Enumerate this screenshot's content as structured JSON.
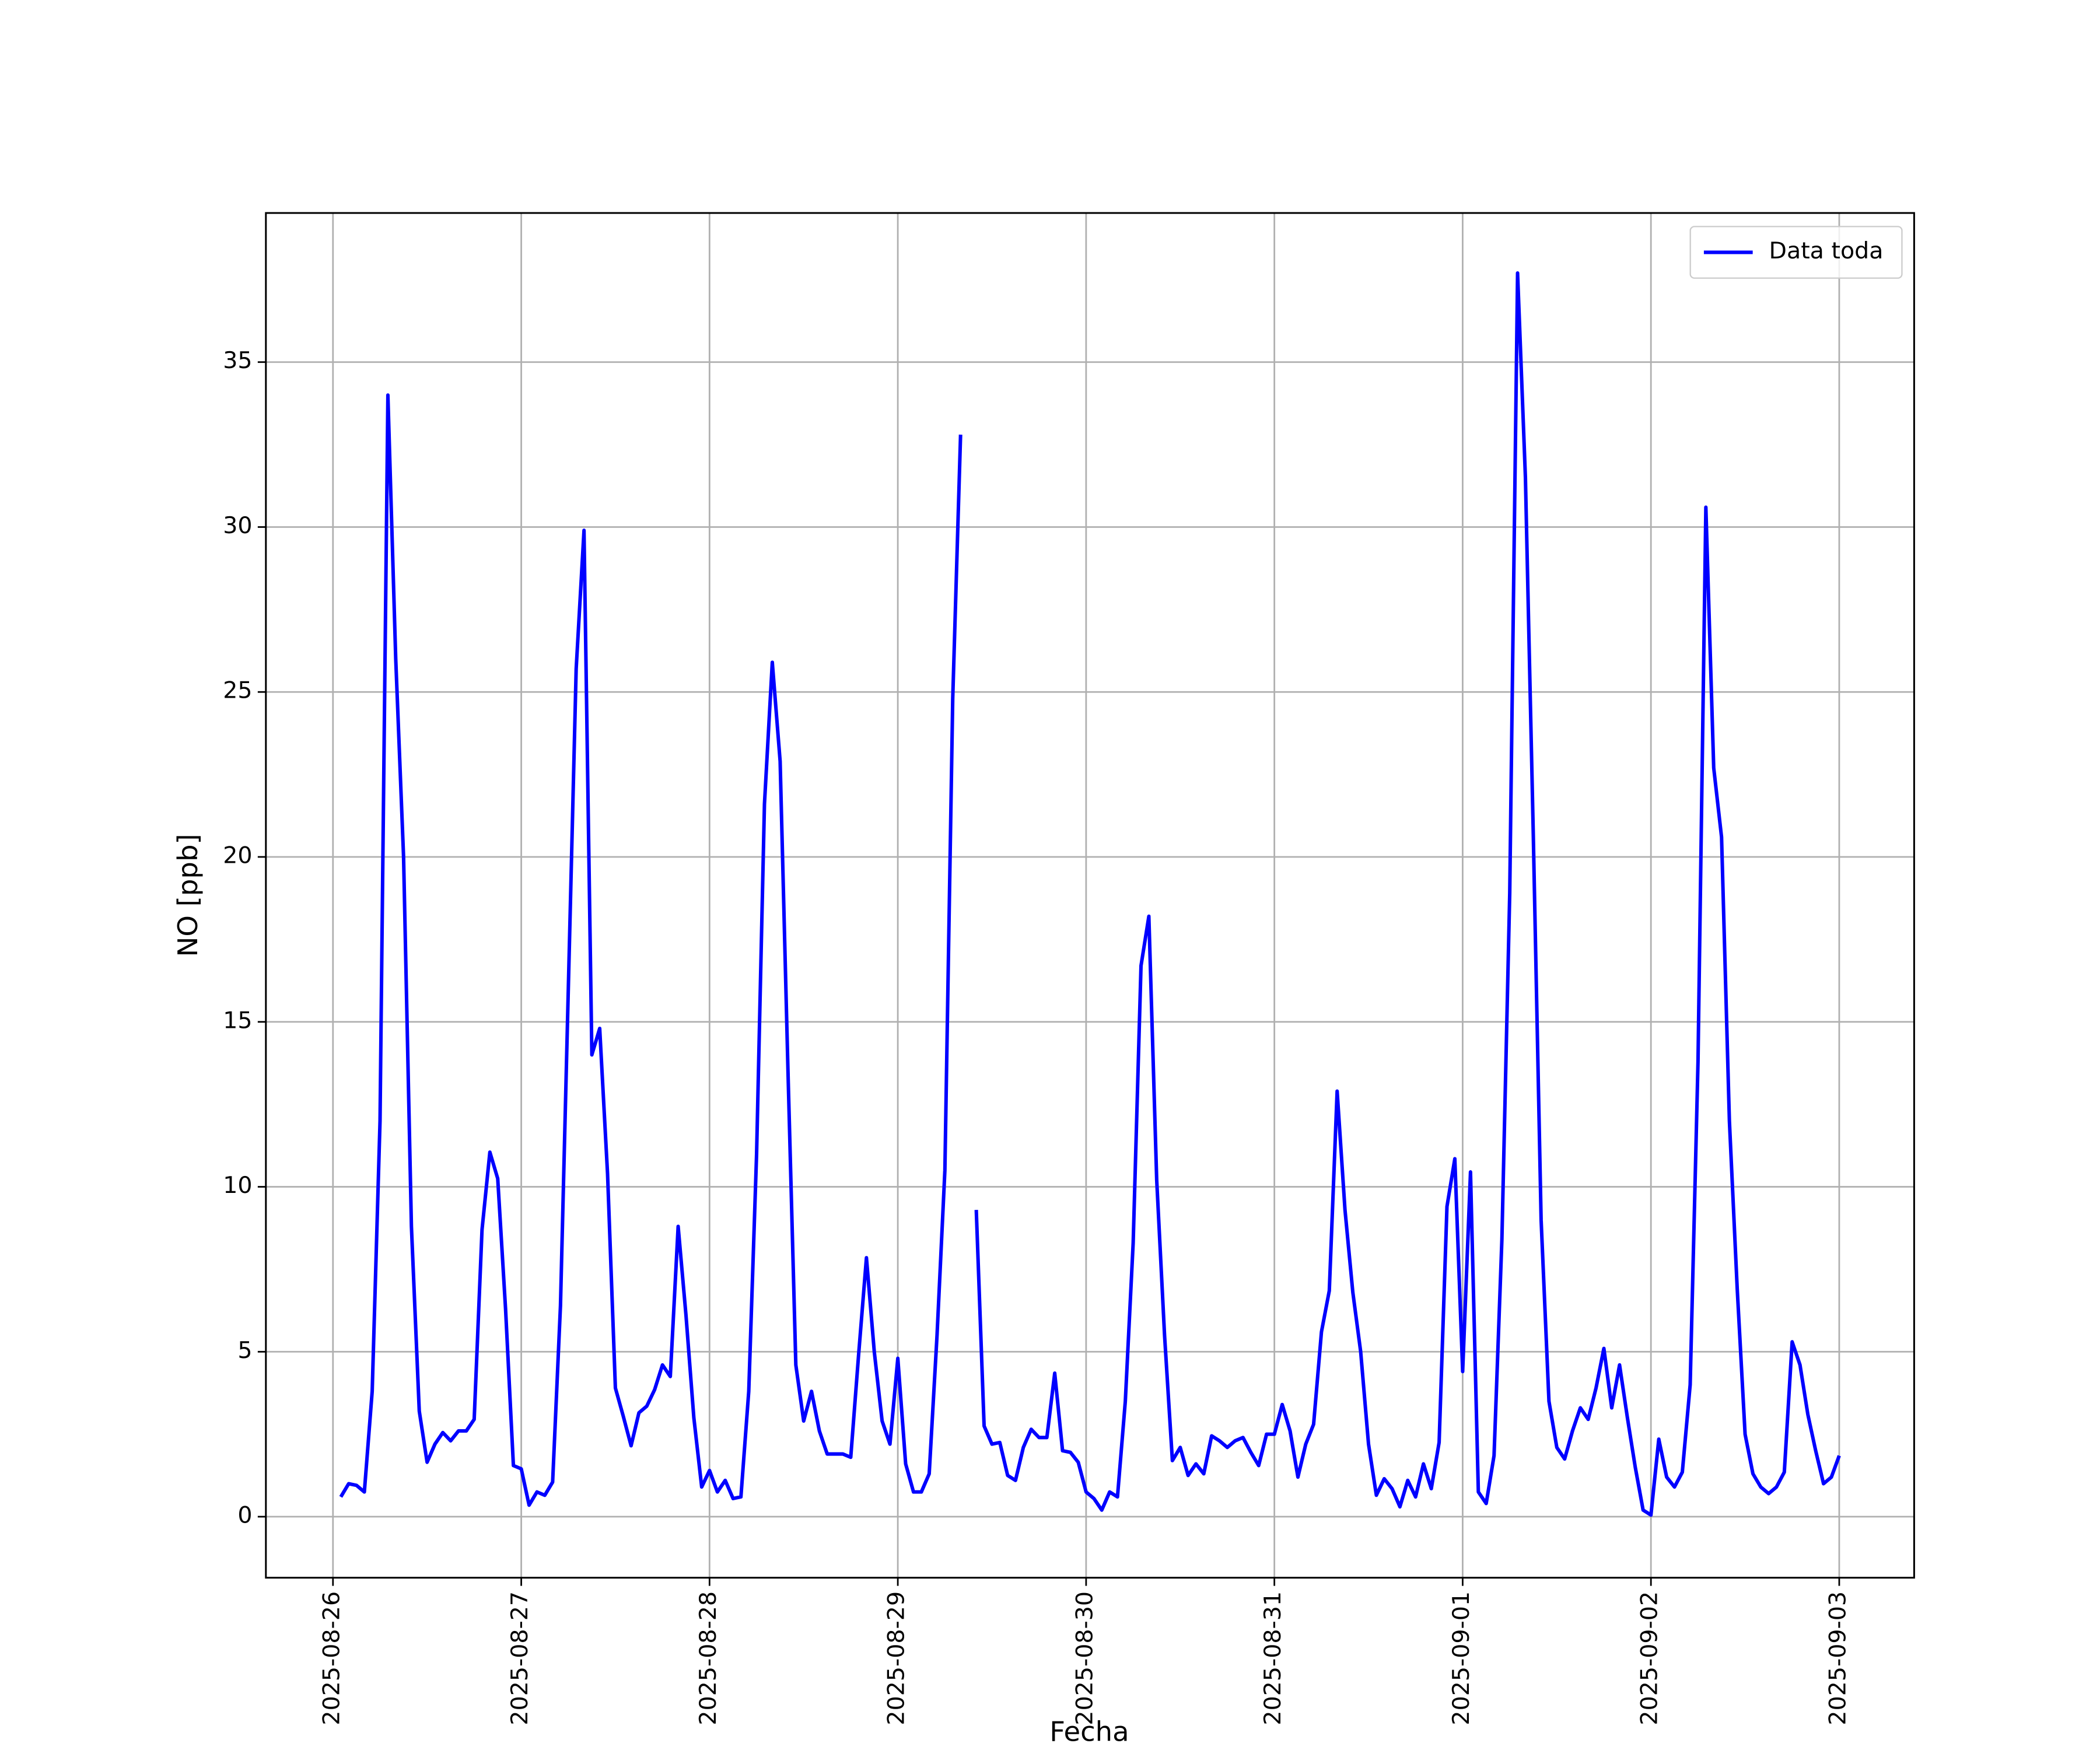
{
  "chart_data": {
    "type": "line",
    "xlabel": "Fecha",
    "ylabel": "NO [ppb]",
    "x": [
      "2025-08-26 01:00",
      "2025-08-26 02:00",
      "2025-08-26 03:00",
      "2025-08-26 04:00",
      "2025-08-26 05:00",
      "2025-08-26 06:00",
      "2025-08-26 07:00",
      "2025-08-26 08:00",
      "2025-08-26 09:00",
      "2025-08-26 10:00",
      "2025-08-26 11:00",
      "2025-08-26 12:00",
      "2025-08-26 13:00",
      "2025-08-26 14:00",
      "2025-08-26 15:00",
      "2025-08-26 16:00",
      "2025-08-26 17:00",
      "2025-08-26 18:00",
      "2025-08-26 19:00",
      "2025-08-26 20:00",
      "2025-08-26 21:00",
      "2025-08-26 22:00",
      "2025-08-26 23:00",
      "2025-08-27 00:00",
      "2025-08-27 01:00",
      "2025-08-27 02:00",
      "2025-08-27 03:00",
      "2025-08-27 04:00",
      "2025-08-27 05:00",
      "2025-08-27 06:00",
      "2025-08-27 07:00",
      "2025-08-27 08:00",
      "2025-08-27 09:00",
      "2025-08-27 10:00",
      "2025-08-27 11:00",
      "2025-08-27 12:00",
      "2025-08-27 13:00",
      "2025-08-27 14:00",
      "2025-08-27 15:00",
      "2025-08-27 16:00",
      "2025-08-27 17:00",
      "2025-08-27 18:00",
      "2025-08-27 19:00",
      "2025-08-27 20:00",
      "2025-08-27 21:00",
      "2025-08-27 22:00",
      "2025-08-27 23:00",
      "2025-08-28 00:00",
      "2025-08-28 01:00",
      "2025-08-28 02:00",
      "2025-08-28 03:00",
      "2025-08-28 04:00",
      "2025-08-28 05:00",
      "2025-08-28 06:00",
      "2025-08-28 07:00",
      "2025-08-28 08:00",
      "2025-08-28 09:00",
      "2025-08-28 10:00",
      "2025-08-28 11:00",
      "2025-08-28 12:00",
      "2025-08-28 13:00",
      "2025-08-28 14:00",
      "2025-08-28 15:00",
      "2025-08-28 16:00",
      "2025-08-28 17:00",
      "2025-08-28 18:00",
      "2025-08-28 19:00",
      "2025-08-28 20:00",
      "2025-08-28 21:00",
      "2025-08-28 22:00",
      "2025-08-28 23:00",
      "2025-08-29 00:00",
      "2025-08-29 01:00",
      "2025-08-29 02:00",
      "2025-08-29 03:00",
      "2025-08-29 04:00",
      "2025-08-29 05:00",
      "2025-08-29 06:00",
      "2025-08-29 07:00",
      "2025-08-29 08:00",
      "2025-08-29 09:00",
      "2025-08-29 10:00",
      "2025-08-29 11:00",
      "2025-08-29 12:00",
      "2025-08-29 13:00",
      "2025-08-29 14:00",
      "2025-08-29 15:00",
      "2025-08-29 16:00",
      "2025-08-29 17:00",
      "2025-08-29 18:00",
      "2025-08-29 19:00",
      "2025-08-29 20:00",
      "2025-08-29 21:00",
      "2025-08-29 22:00",
      "2025-08-29 23:00",
      "2025-08-30 00:00",
      "2025-08-30 01:00",
      "2025-08-30 02:00",
      "2025-08-30 03:00",
      "2025-08-30 04:00",
      "2025-08-30 05:00",
      "2025-08-30 06:00",
      "2025-08-30 07:00",
      "2025-08-30 08:00",
      "2025-08-30 09:00",
      "2025-08-30 10:00",
      "2025-08-30 11:00",
      "2025-08-30 12:00",
      "2025-08-30 13:00",
      "2025-08-30 14:00",
      "2025-08-30 15:00",
      "2025-08-30 16:00",
      "2025-08-30 17:00",
      "2025-08-30 18:00",
      "2025-08-30 19:00",
      "2025-08-30 20:00",
      "2025-08-30 21:00",
      "2025-08-30 22:00",
      "2025-08-30 23:00",
      "2025-08-31 00:00",
      "2025-08-31 01:00",
      "2025-08-31 02:00",
      "2025-08-31 03:00",
      "2025-08-31 04:00",
      "2025-08-31 05:00",
      "2025-08-31 06:00",
      "2025-08-31 07:00",
      "2025-08-31 08:00",
      "2025-08-31 09:00",
      "2025-08-31 10:00",
      "2025-08-31 11:00",
      "2025-08-31 12:00",
      "2025-08-31 13:00",
      "2025-08-31 14:00",
      "2025-08-31 15:00",
      "2025-08-31 16:00",
      "2025-08-31 17:00",
      "2025-08-31 18:00",
      "2025-08-31 19:00",
      "2025-08-31 20:00",
      "2025-08-31 21:00",
      "2025-08-31 22:00",
      "2025-08-31 23:00",
      "2025-09-01 00:00",
      "2025-09-01 01:00",
      "2025-09-01 02:00",
      "2025-09-01 03:00",
      "2025-09-01 04:00",
      "2025-09-01 05:00",
      "2025-09-01 06:00",
      "2025-09-01 07:00",
      "2025-09-01 08:00",
      "2025-09-01 09:00",
      "2025-09-01 10:00",
      "2025-09-01 11:00",
      "2025-09-01 12:00",
      "2025-09-01 13:00",
      "2025-09-01 14:00",
      "2025-09-01 15:00",
      "2025-09-01 16:00",
      "2025-09-01 17:00",
      "2025-09-01 18:00",
      "2025-09-01 19:00",
      "2025-09-01 20:00",
      "2025-09-01 21:00",
      "2025-09-01 22:00",
      "2025-09-01 23:00",
      "2025-09-02 00:00",
      "2025-09-02 01:00",
      "2025-09-02 02:00",
      "2025-09-02 03:00",
      "2025-09-02 04:00",
      "2025-09-02 05:00",
      "2025-09-02 06:00",
      "2025-09-02 07:00",
      "2025-09-02 08:00",
      "2025-09-02 09:00",
      "2025-09-02 10:00",
      "2025-09-02 11:00",
      "2025-09-02 12:00",
      "2025-09-02 13:00",
      "2025-09-02 14:00",
      "2025-09-02 15:00",
      "2025-09-02 16:00",
      "2025-09-02 17:00",
      "2025-09-02 18:00",
      "2025-09-02 19:00",
      "2025-09-02 20:00",
      "2025-09-02 21:00",
      "2025-09-02 22:00",
      "2025-09-02 23:00",
      "2025-09-03 00:00"
    ],
    "series": [
      {
        "name": "Data toda",
        "color": "#0000ff",
        "values": [
          0.6,
          1.0,
          0.95,
          0.75,
          3.8,
          12,
          34,
          26,
          20,
          8.8,
          3.2,
          1.65,
          2.2,
          2.55,
          2.3,
          2.6,
          2.6,
          2.95,
          8.7,
          11.05,
          10.25,
          6.3,
          1.55,
          1.45,
          0.35,
          0.75,
          0.65,
          1.05,
          6.4,
          16,
          25.7,
          29.9,
          14,
          14.8,
          10.4,
          3.9,
          3.05,
          2.15,
          3.15,
          3.35,
          3.85,
          4.6,
          4.25,
          8.8,
          6.1,
          3.0,
          0.9,
          1.4,
          0.75,
          1.1,
          0.55,
          0.6,
          3.8,
          11,
          21.6,
          25.9,
          22.9,
          13.5,
          4.6,
          2.9,
          3.8,
          2.6,
          1.9,
          1.9,
          1.9,
          1.8,
          4.9,
          7.85,
          5,
          2.9,
          2.2,
          4.8,
          1.6,
          0.75,
          0.75,
          1.3,
          5.5,
          10.5,
          24.8,
          32.8,
          null,
          9.3,
          2.75,
          2.2,
          2.25,
          1.25,
          1.1,
          2.1,
          2.65,
          2.4,
          2.4,
          4.35,
          2.0,
          1.95,
          1.65,
          0.75,
          0.55,
          0.2,
          0.75,
          0.6,
          3.5,
          8.3,
          16.7,
          18.2,
          10.2,
          5.5,
          1.7,
          2.1,
          1.25,
          1.6,
          1.3,
          2.45,
          2.3,
          2.1,
          2.3,
          2.4,
          1.95,
          1.55,
          2.5,
          2.5,
          3.4,
          2.6,
          1.2,
          2.2,
          2.8,
          5.6,
          6.85,
          12.9,
          9.3,
          6.8,
          5.0,
          2.2,
          0.65,
          1.15,
          0.85,
          0.3,
          1.1,
          0.6,
          1.6,
          0.85,
          2.25,
          9.4,
          10.85,
          4.4,
          10.45,
          0.75,
          0.4,
          1.85,
          8.4,
          18.9,
          37.7,
          31.5,
          20.7,
          9.0,
          3.5,
          2.1,
          1.75,
          2.6,
          3.3,
          2.95,
          3.9,
          5.1,
          3.3,
          4.6,
          3.0,
          1.5,
          0.2,
          0.05,
          2.35,
          1.2,
          0.9,
          1.35,
          4.0,
          13.8,
          30.6,
          22.7,
          20.6,
          12.0,
          6.9,
          2.5,
          1.3,
          0.9,
          0.7,
          0.9,
          1.35,
          5.3,
          4.6,
          3.1,
          2.0,
          1.0,
          1.2,
          1.85
        ]
      }
    ],
    "xlim": [
      "2025-08-25 15:27",
      "2025-09-03 09:33"
    ],
    "xticks": [
      "2025-08-26",
      "2025-08-27",
      "2025-08-28",
      "2025-08-29",
      "2025-08-30",
      "2025-08-31",
      "2025-09-01",
      "2025-09-02",
      "2025-09-03"
    ],
    "ylim": [
      -1.85,
      39.52
    ],
    "yticks": [
      0,
      5,
      10,
      15,
      20,
      25,
      30,
      35
    ],
    "grid": true,
    "legend": "upper right"
  }
}
